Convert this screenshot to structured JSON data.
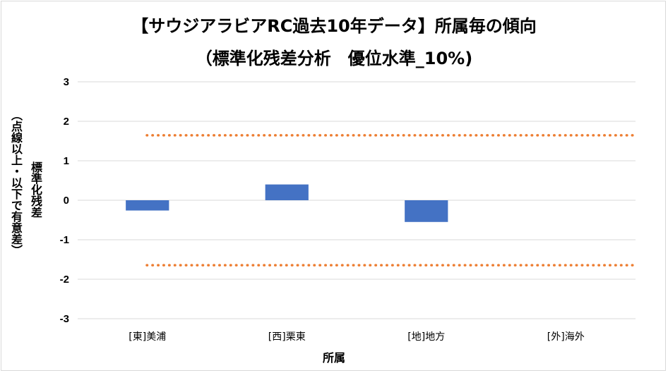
{
  "chart_data": {
    "type": "bar",
    "title": "【サウジアラビアRC過去10年データ】所属毎の傾向",
    "subtitle": "（標準化残差分析　優位水準_10%)",
    "xlabel": "所属",
    "ylabel": "標準化残差",
    "ylabel_note": "（点線以上・以下で有意差）",
    "categories": [
      "[東]美浦",
      "[西]栗東",
      "[地]地方",
      "[外]海外"
    ],
    "values": [
      -0.26,
      0.4,
      -0.55,
      0
    ],
    "ylim": [
      -3,
      3
    ],
    "yticks": [
      3,
      2,
      1,
      0,
      -1,
      -2,
      -3
    ],
    "reference_lines": [
      1.645,
      -1.645
    ],
    "bar_color": "#4472c4",
    "reference_color": "#ed7d31",
    "grid": true,
    "legend": "none"
  }
}
